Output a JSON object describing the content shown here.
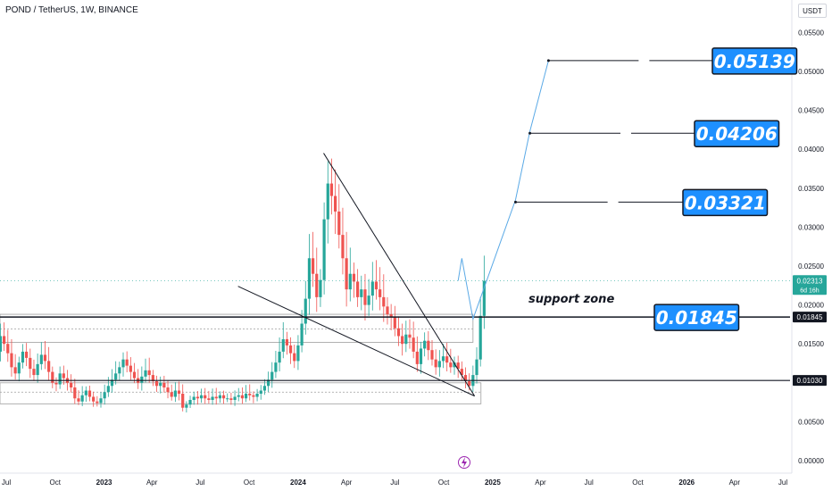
{
  "header": {
    "ticker": "POND / TetherUS, 1W, BINANCE",
    "currency": "USDT"
  },
  "colors": {
    "up": "#26a69a",
    "down": "#ef5350",
    "label_bg": "#1e90ff",
    "projection": "#5aa9e6"
  },
  "chart_data": {
    "type": "candlestick",
    "interval": "1W",
    "ylim": [
      0,
      0.056
    ],
    "y_ticks": [
      "0.00000",
      "0.00500",
      "0.01000",
      "0.01500",
      "0.02000",
      "0.02500",
      "0.03000",
      "0.03500",
      "0.04000",
      "0.04500",
      "0.05000",
      "0.05500"
    ],
    "x_ticks": [
      {
        "label": "Jul",
        "date": "2022-07-01"
      },
      {
        "label": "Oct",
        "date": "2022-10-01"
      },
      {
        "label": "2023",
        "date": "2023-01-01",
        "bold": true
      },
      {
        "label": "Apr",
        "date": "2023-04-01"
      },
      {
        "label": "Jul",
        "date": "2023-07-01"
      },
      {
        "label": "Oct",
        "date": "2023-10-01"
      },
      {
        "label": "2024",
        "date": "2024-01-01",
        "bold": true
      },
      {
        "label": "Apr",
        "date": "2024-04-01"
      },
      {
        "label": "Jul",
        "date": "2024-07-01"
      },
      {
        "label": "Oct",
        "date": "2024-10-01"
      },
      {
        "label": "2025",
        "date": "2025-01-01",
        "bold": true
      },
      {
        "label": "Apr",
        "date": "2025-04-01"
      },
      {
        "label": "Jul",
        "date": "2025-07-01"
      },
      {
        "label": "Oct",
        "date": "2025-10-01"
      },
      {
        "label": "2026",
        "date": "2026-01-01",
        "bold": true
      },
      {
        "label": "Apr",
        "date": "2026-04-01"
      },
      {
        "label": "Jul",
        "date": "2026-07-01"
      }
    ],
    "candles_close": [
      0.012,
      0.0135,
      0.0128,
      0.014,
      0.016,
      0.015,
      0.0138,
      0.012,
      0.0112,
      0.0126,
      0.014,
      0.0132,
      0.0118,
      0.011,
      0.0124,
      0.0136,
      0.0128,
      0.0114,
      0.01,
      0.0098,
      0.0112,
      0.0106,
      0.01,
      0.0094,
      0.008,
      0.0076,
      0.0084,
      0.009,
      0.0082,
      0.0076,
      0.0074,
      0.008,
      0.0088,
      0.0096,
      0.0104,
      0.0112,
      0.012,
      0.013,
      0.0122,
      0.0114,
      0.0106,
      0.01,
      0.0108,
      0.0116,
      0.011,
      0.0102,
      0.0096,
      0.01,
      0.0094,
      0.0088,
      0.0082,
      0.009,
      0.0086,
      0.0068,
      0.0072,
      0.0078,
      0.0082,
      0.008,
      0.0084,
      0.008,
      0.0078,
      0.0082,
      0.008,
      0.0084,
      0.008,
      0.008,
      0.0078,
      0.0082,
      0.0084,
      0.008,
      0.0086,
      0.0084,
      0.0082,
      0.0086,
      0.009,
      0.0096,
      0.0104,
      0.0114,
      0.0126,
      0.014,
      0.0156,
      0.0148,
      0.0138,
      0.0128,
      0.0148,
      0.0176,
      0.0208,
      0.026,
      0.024,
      0.021,
      0.0232,
      0.031,
      0.0356,
      0.034,
      0.032,
      0.029,
      0.026,
      0.022,
      0.024,
      0.023,
      0.021,
      0.022,
      0.02,
      0.0212,
      0.023,
      0.022,
      0.021,
      0.0198,
      0.0188,
      0.0184,
      0.017,
      0.016,
      0.015,
      0.0162,
      0.0158,
      0.014,
      0.0124,
      0.0144,
      0.0154,
      0.0142,
      0.013,
      0.012,
      0.0128,
      0.0134,
      0.0126,
      0.012,
      0.0126,
      0.0118,
      0.011,
      0.0102,
      0.0096,
      0.011,
      0.013,
      0.0186,
      0.0231
    ],
    "last_price": "0.02313",
    "countdown": "6d 16h",
    "support_zone_label": "support zone",
    "support_level": "0.01845",
    "lower_level": "0.01030",
    "targets": [
      "0.03321",
      "0.04206",
      "0.05139"
    ]
  }
}
